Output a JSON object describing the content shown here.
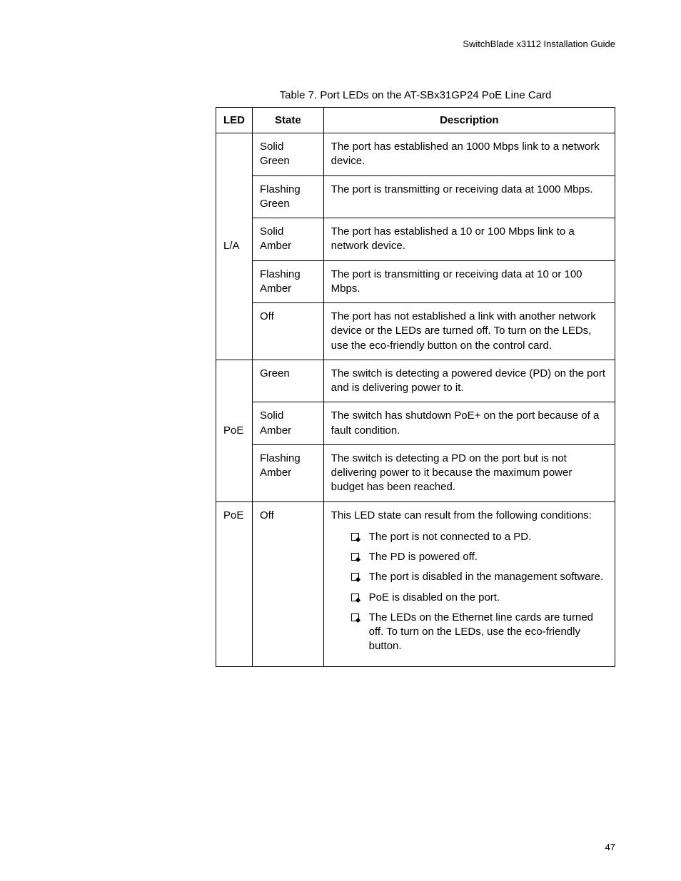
{
  "header": {
    "doc_title": "SwitchBlade x3112 Installation Guide"
  },
  "table": {
    "caption": "Table 7.   Port LEDs on the AT-SBx31GP24 PoE Line Card",
    "columns": {
      "col1": "LED",
      "col2": "State",
      "col3": "Description"
    },
    "col_widths": {
      "led": 48,
      "state": 100,
      "desc": 412
    },
    "border_color": "#000000",
    "font_size": 15,
    "groups": [
      {
        "led": "L/A",
        "rows": [
          {
            "state": "Solid Green",
            "desc": "The port has established an 1000 Mbps link to a network device."
          },
          {
            "state": "Flashing Green",
            "desc": "The port is transmitting or receiving data at 1000 Mbps."
          },
          {
            "state": "Solid Amber",
            "desc": "The port has established a 10 or 100 Mbps link to a network device."
          },
          {
            "state": "Flashing Amber",
            "desc": "The port is transmitting or receiving data at 10 or 100 Mbps."
          },
          {
            "state": "Off",
            "desc": "The port has not established a link with another network device or the LEDs are turned off. To turn on the LEDs, use the eco-friendly button on the control card."
          }
        ]
      },
      {
        "led": "PoE",
        "rows": [
          {
            "state": "Green",
            "desc": "The switch is detecting a powered device (PD) on the port and is delivering power to it."
          },
          {
            "state": "Solid Amber",
            "desc": "The switch has shutdown PoE+ on the port because of a fault condition."
          },
          {
            "state": "Flashing Amber",
            "desc": "The switch is detecting a PD on the port but is not delivering power to it because the maximum power budget has been reached."
          }
        ]
      },
      {
        "led": "PoE",
        "rows": [
          {
            "state": "Off",
            "desc_intro": "This LED state can result from the following conditions:",
            "bullets": [
              "The port is not connected to a PD.",
              "The PD is powered off.",
              "The port is disabled in the management software.",
              "PoE is disabled on the port.",
              "The LEDs on the Ethernet line cards are turned off. To turn on the LEDs, use the eco-friendly button."
            ]
          }
        ]
      }
    ]
  },
  "footer": {
    "page_number": "47"
  },
  "style": {
    "background_color": "#ffffff",
    "text_color": "#000000",
    "header_fontsize": 13,
    "caption_fontsize": 15,
    "body_fontsize": 15,
    "pagenum_fontsize": 13
  }
}
